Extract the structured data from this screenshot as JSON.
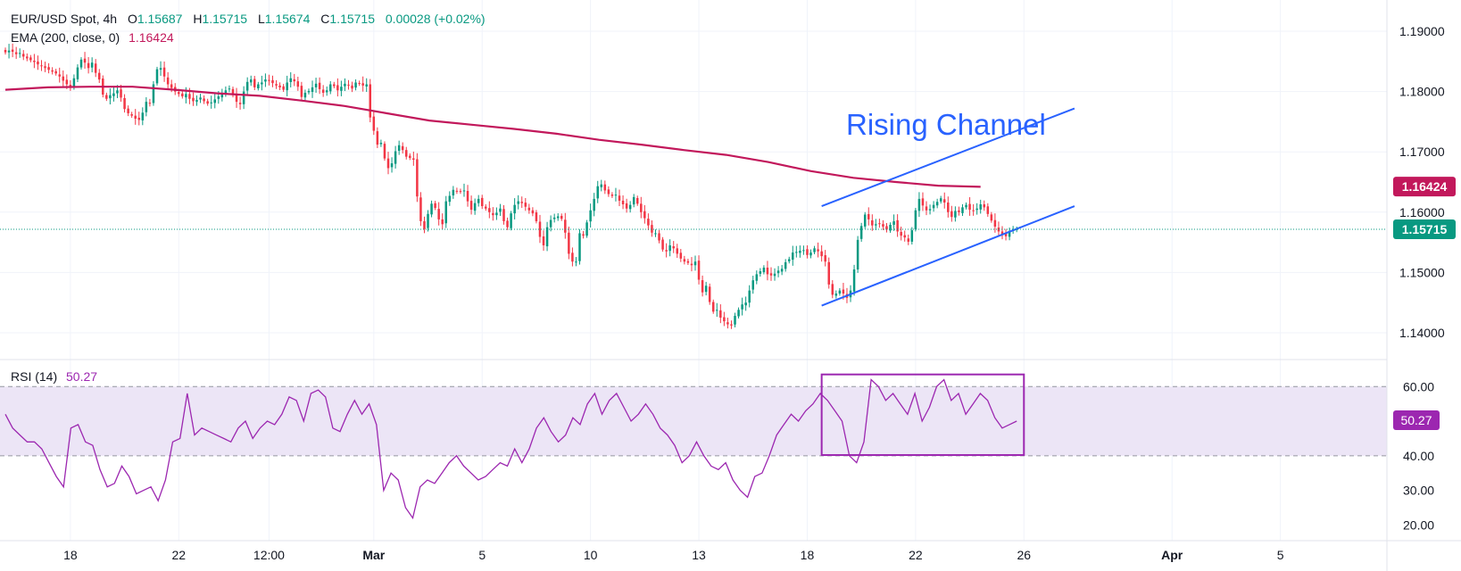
{
  "header": {
    "symbol": "EUR/USD Spot, 4h",
    "o_label": "O",
    "o_value": "1.15687",
    "h_label": "H",
    "h_value": "1.15715",
    "l_label": "L",
    "l_value": "1.15674",
    "c_label": "C",
    "c_value": "1.15715",
    "change": "0.00028 (+0.02%)",
    "ema_label": "EMA (200, close, 0)",
    "ema_value": "1.16424"
  },
  "rsi_header": {
    "label": "RSI (14)",
    "value": "50.27"
  },
  "annotation": {
    "text": "Rising Channel"
  },
  "badges": {
    "ema": "1.16424",
    "close": "1.15715",
    "rsi": "50.27"
  },
  "colors": {
    "up": "#089981",
    "down": "#f23645",
    "ema": "#c2185b",
    "channel": "#2962ff",
    "rsi": "#9c27b0",
    "rsi_band": "#ece5f6",
    "grid": "#f0f3fa",
    "text": "#131722",
    "axis_text": "#434651"
  },
  "chart_data": [
    {
      "type": "candlestick",
      "title": "EUR/USD Spot, 4h",
      "y_axis_ticks": [
        "1.19000",
        "1.18000",
        "1.17000",
        "1.16000",
        "1.15000",
        "1.14000"
      ],
      "y_range": [
        1.136,
        1.194
      ],
      "x_tick_labels": [
        "18",
        "22",
        "12:00",
        "Mar",
        "5",
        "10",
        "13",
        "18",
        "22",
        "26",
        "Apr",
        "5"
      ],
      "x_tick_bars": [
        18,
        48,
        73,
        102,
        132,
        162,
        192,
        222,
        252,
        282,
        323,
        353
      ],
      "bars_total": 383,
      "close_series": [
        1.1865,
        1.1868,
        1.1866,
        1.1862,
        1.1864,
        1.1858,
        1.1855,
        1.1852,
        1.1849,
        1.1845,
        1.1842,
        1.1839,
        1.1836,
        1.1833,
        1.183,
        1.1825,
        1.1818,
        1.1812,
        1.1808,
        1.1822,
        1.184,
        1.1853,
        1.1848,
        1.1839,
        1.1848,
        1.1831,
        1.182,
        1.1795,
        1.1788,
        1.1794,
        1.1797,
        1.1802,
        1.179,
        1.1771,
        1.1764,
        1.176,
        1.1755,
        1.1753,
        1.1765,
        1.1783,
        1.1781,
        1.1812,
        1.1837,
        1.1839,
        1.1825,
        1.1812,
        1.1806,
        1.18,
        1.1796,
        1.1792,
        1.1796,
        1.1788,
        1.1784,
        1.1786,
        1.179,
        1.1784,
        1.178,
        1.1782,
        1.1787,
        1.1792,
        1.1797,
        1.1802,
        1.1805,
        1.1794,
        1.1783,
        1.1779,
        1.18,
        1.1816,
        1.182,
        1.1807,
        1.1812,
        1.1815,
        1.182,
        1.1818,
        1.1814,
        1.181,
        1.1807,
        1.1803,
        1.1815,
        1.1822,
        1.1817,
        1.1808,
        1.1791,
        1.1798,
        1.1801,
        1.1807,
        1.1813,
        1.1804,
        1.1798,
        1.1802,
        1.1812,
        1.1809,
        1.1802,
        1.1808,
        1.1813,
        1.181,
        1.1805,
        1.1815,
        1.1813,
        1.181,
        1.1812,
        1.1757,
        1.1735,
        1.1712,
        1.1715,
        1.1689,
        1.1673,
        1.1681,
        1.1701,
        1.1711,
        1.1703,
        1.1692,
        1.169,
        1.1687,
        1.1626,
        1.1585,
        1.1572,
        1.1597,
        1.1614,
        1.1607,
        1.1588,
        1.158,
        1.1618,
        1.1627,
        1.1637,
        1.1635,
        1.1634,
        1.1636,
        1.1618,
        1.1604,
        1.1615,
        1.1622,
        1.161,
        1.1606,
        1.16,
        1.1595,
        1.1599,
        1.1606,
        1.1585,
        1.1575,
        1.1598,
        1.1612,
        1.1618,
        1.1615,
        1.1609,
        1.1603,
        1.1598,
        1.1585,
        1.1559,
        1.1545,
        1.1575,
        1.1587,
        1.1591,
        1.1593,
        1.1589,
        1.1566,
        1.1531,
        1.1518,
        1.1518,
        1.1565,
        1.1561,
        1.1583,
        1.1603,
        1.1622,
        1.1643,
        1.1646,
        1.1636,
        1.163,
        1.1627,
        1.1629,
        1.1619,
        1.1613,
        1.1606,
        1.1612,
        1.1625,
        1.1614,
        1.16,
        1.159,
        1.1578,
        1.1566,
        1.1565,
        1.1553,
        1.1538,
        1.1535,
        1.1545,
        1.154,
        1.1531,
        1.1523,
        1.1518,
        1.1516,
        1.1512,
        1.1518,
        1.1488,
        1.1467,
        1.1478,
        1.1451,
        1.1435,
        1.1438,
        1.1425,
        1.1419,
        1.1414,
        1.1412,
        1.1428,
        1.1438,
        1.1447,
        1.145,
        1.147,
        1.1487,
        1.1497,
        1.1502,
        1.1508,
        1.1497,
        1.1495,
        1.1498,
        1.1503,
        1.1506,
        1.1517,
        1.1522,
        1.1533,
        1.1534,
        1.1536,
        1.1537,
        1.1529,
        1.1533,
        1.154,
        1.1535,
        1.1527,
        1.1518,
        1.148,
        1.1463,
        1.1465,
        1.147,
        1.1465,
        1.1458,
        1.147,
        1.1505,
        1.1554,
        1.1577,
        1.1596,
        1.1588,
        1.1578,
        1.158,
        1.1581,
        1.1576,
        1.1571,
        1.1579,
        1.1585,
        1.1568,
        1.1561,
        1.1558,
        1.1551,
        1.157,
        1.1603,
        1.1622,
        1.1611,
        1.1603,
        1.1605,
        1.1612,
        1.1617,
        1.1623,
        1.1616,
        1.16,
        1.1592,
        1.1602,
        1.16,
        1.1608,
        1.1612,
        1.1604,
        1.1603,
        1.1606,
        1.1613,
        1.1608,
        1.1597,
        1.1586,
        1.1576,
        1.1568,
        1.1563,
        1.156,
        1.1568,
        1.1572,
        1.1572
      ],
      "ema_series": [
        1.1803,
        1.1807,
        1.1808,
        1.1808,
        1.1803,
        1.1797,
        1.1793,
        1.1785,
        1.1776,
        1.1764,
        1.1752,
        1.1745,
        1.1738,
        1.173,
        1.172,
        1.1712,
        1.1703,
        1.1695,
        1.1683,
        1.1668,
        1.1657,
        1.165,
        1.1644,
        1.1642
      ],
      "channel": {
        "upper": [
          [
            1.161,
            "Mar 19"
          ],
          [
            1.1772,
            "end"
          ]
        ],
        "lower": [
          [
            1.1445,
            "Mar 19"
          ],
          [
            1.161,
            "end"
          ]
        ]
      }
    },
    {
      "type": "line",
      "title": "RSI (14)",
      "y_axis_ticks": [
        "60.00",
        "50.00",
        "40.00",
        "30.00",
        "20.00"
      ],
      "y_range": [
        17,
        66
      ],
      "band": [
        40,
        60
      ],
      "values": [
        52,
        48,
        46,
        44,
        44,
        42,
        38,
        34,
        31,
        48,
        49,
        44,
        43,
        36,
        31,
        32,
        37,
        34,
        29,
        30,
        31,
        27,
        33,
        44,
        45,
        58,
        46,
        48,
        47,
        46,
        45,
        44,
        48,
        50,
        45,
        48,
        50,
        49,
        52,
        57,
        56,
        50,
        58,
        59,
        57,
        48,
        47,
        52,
        56,
        52,
        55,
        49,
        30,
        35,
        33,
        25,
        22,
        31,
        33,
        32,
        35,
        38,
        40,
        37,
        35,
        33,
        34,
        36,
        38,
        37,
        42,
        38,
        42,
        48,
        51,
        47,
        44,
        46,
        51,
        49,
        55,
        58,
        52,
        56,
        58,
        54,
        50,
        52,
        55,
        52,
        48,
        46,
        43,
        38,
        40,
        44,
        40,
        37,
        36,
        38,
        33,
        30,
        28,
        34,
        35,
        40,
        46,
        49,
        52,
        50,
        53,
        55,
        58,
        56,
        53,
        50,
        40,
        38,
        44,
        62,
        60,
        56,
        58,
        55,
        52,
        58,
        50,
        54,
        60,
        62,
        56,
        58,
        52,
        55,
        58,
        56,
        51,
        48,
        49,
        50
      ],
      "markup_box": {
        "y_top": 63.5,
        "y_bottom": 40.2,
        "from": "Mar 19",
        "to": "Mar 28"
      }
    }
  ]
}
